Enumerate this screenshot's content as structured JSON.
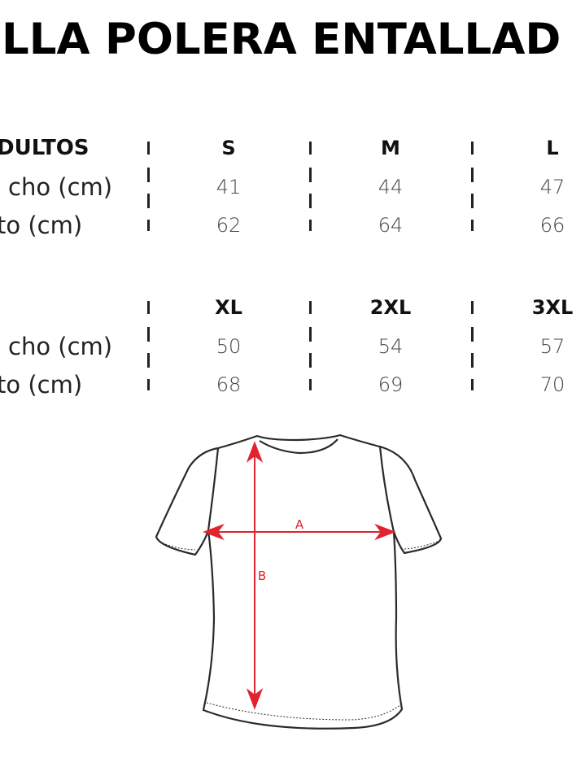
{
  "title": "LLA POLERA ENTALLAD",
  "tables": [
    {
      "header_label": "DULTOS",
      "sizes": [
        "S",
        "M",
        "L"
      ],
      "rows": [
        {
          "label": "cho (cm)",
          "values": [
            "41",
            "44",
            "47"
          ]
        },
        {
          "label": "to (cm)",
          "values": [
            "62",
            "64",
            "66"
          ]
        }
      ]
    },
    {
      "header_label": "",
      "sizes": [
        "XL",
        "2XL",
        "3XL"
      ],
      "rows": [
        {
          "label": "cho (cm)",
          "values": [
            "50",
            "54",
            "57"
          ]
        },
        {
          "label": "to (cm)",
          "values": [
            "68",
            "69",
            "70"
          ]
        }
      ]
    }
  ],
  "diagram": {
    "width_label": "A",
    "length_label": "B",
    "arrow_color": "#e0232e",
    "outline_color": "#2a2a2a"
  }
}
